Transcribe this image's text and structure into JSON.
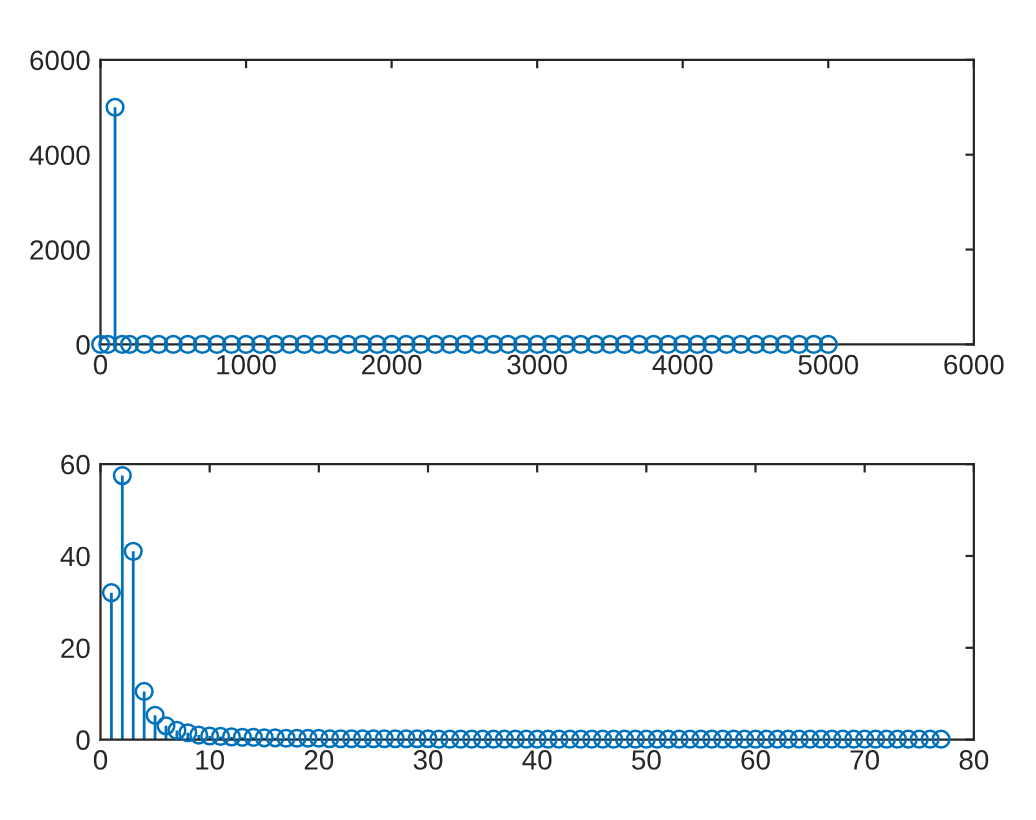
{
  "chart_data": [
    {
      "type": "lollipop",
      "x": [
        1,
        50,
        100,
        150,
        200,
        300,
        400,
        500,
        600,
        700,
        800,
        900,
        1000,
        1100,
        1200,
        1300,
        1400,
        1500,
        1600,
        1700,
        1800,
        1900,
        2000,
        2100,
        2200,
        2300,
        2400,
        2500,
        2600,
        2700,
        2800,
        2900,
        3000,
        3100,
        3200,
        3300,
        3400,
        3500,
        3600,
        3700,
        3800,
        3900,
        4000,
        4100,
        4200,
        4300,
        4400,
        4500,
        4600,
        4700,
        4800,
        4900,
        5000
      ],
      "values": [
        0,
        0,
        5000,
        0,
        0,
        0,
        0,
        0,
        0,
        0,
        0,
        0,
        0,
        0,
        0,
        0,
        0,
        0,
        0,
        0,
        0,
        0,
        0,
        0,
        0,
        0,
        0,
        0,
        0,
        0,
        0,
        0,
        0,
        0,
        0,
        0,
        0,
        0,
        0,
        0,
        0,
        0,
        0,
        0,
        0,
        0,
        0,
        0,
        0,
        0,
        0,
        0,
        0
      ],
      "color": "#0072bd",
      "marker": "circle",
      "xlim": [
        0,
        6000
      ],
      "xticks": [
        0,
        1000,
        2000,
        3000,
        4000,
        5000,
        6000
      ],
      "ylim": [
        0,
        6000
      ],
      "yticks": [
        0,
        2000,
        4000,
        6000
      ],
      "grid": false
    },
    {
      "type": "lollipop",
      "x": [
        1,
        2,
        3,
        4,
        5,
        6,
        7,
        8,
        9,
        10,
        11,
        12,
        13,
        14,
        15,
        16,
        17,
        18,
        19,
        20,
        21,
        22,
        23,
        24,
        25,
        26,
        27,
        28,
        29,
        30,
        31,
        32,
        33,
        34,
        35,
        36,
        37,
        38,
        39,
        40,
        41,
        42,
        43,
        44,
        45,
        46,
        47,
        48,
        49,
        50,
        51,
        52,
        53,
        54,
        55,
        56,
        57,
        58,
        59,
        60,
        61,
        62,
        63,
        64,
        65,
        66,
        67,
        68,
        69,
        70,
        71,
        72,
        73,
        74,
        75,
        76,
        77
      ],
      "values": [
        32,
        57.5,
        41,
        10.5,
        5.3,
        3,
        2,
        1.5,
        1,
        0.8,
        0.7,
        0.6,
        0.5,
        0.5,
        0.4,
        0.4,
        0.3,
        0.3,
        0.3,
        0.3,
        0.2,
        0.2,
        0.2,
        0.2,
        0.2,
        0.2,
        0.2,
        0.2,
        0.2,
        0.2,
        0.1,
        0.1,
        0.1,
        0.1,
        0.1,
        0.1,
        0.1,
        0.1,
        0.1,
        0.1,
        0.1,
        0.1,
        0.1,
        0.1,
        0.1,
        0.1,
        0.1,
        0.1,
        0.1,
        0.1,
        0.1,
        0.1,
        0.1,
        0.1,
        0.1,
        0.1,
        0.1,
        0.1,
        0.1,
        0.1,
        0.1,
        0.1,
        0.1,
        0.1,
        0.1,
        0.1,
        0.1,
        0.1,
        0.1,
        0.1,
        0.1,
        0.1,
        0.1,
        0.1,
        0.1,
        0.1,
        0.1
      ],
      "color": "#0072bd",
      "marker": "circle",
      "xlim": [
        0,
        80
      ],
      "xticks": [
        0,
        10,
        20,
        30,
        40,
        50,
        60,
        70,
        80
      ],
      "ylim": [
        0,
        60
      ],
      "yticks": [
        0,
        20,
        40,
        60
      ],
      "grid": false
    }
  ]
}
